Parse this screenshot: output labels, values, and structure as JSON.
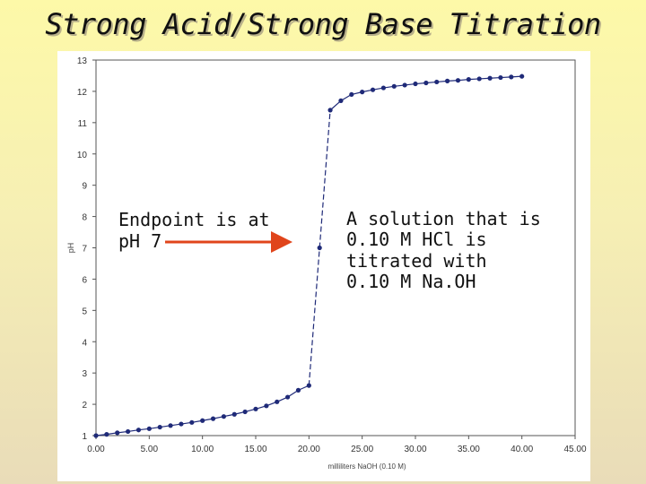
{
  "slide": {
    "title": "Strong Acid/Strong Base Titration",
    "callout_left": "Endpoint is at\npH 7",
    "callout_right": "A solution that is\n0.10 M HCl is\ntitrated with\n0.10 M Na.OH"
  },
  "chart_data": {
    "type": "scatter",
    "title": "",
    "xlabel": "milliliters NaOH (0.10 M)",
    "ylabel": "pH",
    "xlim": [
      0,
      45
    ],
    "ylim": [
      1,
      13
    ],
    "xticks": [
      "0.00",
      "5.00",
      "10.00",
      "15.00",
      "20.00",
      "25.00",
      "30.00",
      "35.00",
      "40.00",
      "45.00"
    ],
    "yticks": [
      "1",
      "2",
      "3",
      "4",
      "5",
      "6",
      "7",
      "8",
      "9",
      "10",
      "11",
      "12",
      "13"
    ],
    "grid": false,
    "legend": "none",
    "series_color": "#1f2a78",
    "arrow_color": "#e0451b",
    "x": [
      0,
      1,
      2,
      3,
      4,
      5,
      6,
      7,
      8,
      9,
      10,
      11,
      12,
      13,
      14,
      15,
      16,
      17,
      18,
      19,
      20,
      21,
      22,
      23,
      24,
      25,
      26,
      27,
      28,
      29,
      30,
      31,
      32,
      33,
      34,
      35,
      36,
      37,
      38,
      39,
      40
    ],
    "y": [
      1.0,
      1.04,
      1.09,
      1.13,
      1.18,
      1.22,
      1.27,
      1.32,
      1.37,
      1.42,
      1.48,
      1.54,
      1.61,
      1.68,
      1.76,
      1.85,
      1.95,
      2.08,
      2.23,
      2.45,
      2.6,
      7.0,
      11.4,
      11.7,
      11.9,
      11.98,
      12.05,
      12.11,
      12.16,
      12.2,
      12.24,
      12.27,
      12.3,
      12.33,
      12.35,
      12.38,
      12.4,
      12.42,
      12.44,
      12.46,
      12.48
    ]
  }
}
